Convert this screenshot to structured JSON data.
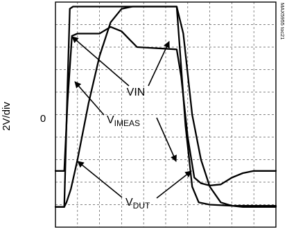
{
  "chart_data": {
    "type": "line",
    "title": "",
    "ylabel": "2V/div",
    "y_zero_label": "0",
    "grid": true,
    "grid_divisions": {
      "x": 10,
      "y": 10
    },
    "ylim": [
      -5,
      5
    ],
    "side_label": "MAX5955 toc21",
    "series": [
      {
        "name": "VIN",
        "x": [
          0,
          0.4,
          0.55,
          0.65,
          0.8,
          1.0,
          5.5,
          5.9,
          6.2,
          6.5,
          7.0,
          8.0,
          10.0
        ],
        "y": [
          -4.1,
          -4.1,
          1.4,
          4.7,
          4.8,
          4.8,
          4.8,
          -0.5,
          -3.2,
          -3.9,
          -4.0,
          -4.05,
          -4.05
        ]
      },
      {
        "name": "VIMEAS",
        "x": [
          0,
          0.4,
          0.55,
          0.75,
          1.0,
          2.0,
          2.5,
          3.0,
          3.4,
          3.7,
          5.5,
          5.7,
          6.0,
          6.3,
          6.6,
          7.0,
          7.5,
          8.0,
          8.5,
          9.0,
          9.5,
          10.0
        ],
        "y": [
          -2.5,
          -2.5,
          0.6,
          3.5,
          3.6,
          3.6,
          3.9,
          3.7,
          3.3,
          3.0,
          2.9,
          1.7,
          -1.0,
          -2.8,
          -3.05,
          -3.15,
          -3.1,
          -2.8,
          -2.6,
          -2.5,
          -2.5,
          -2.5
        ]
      },
      {
        "name": "VDUT",
        "x": [
          0,
          0.4,
          0.5,
          0.7,
          1.0,
          1.5,
          2.0,
          2.5,
          3.0,
          3.5,
          4.0,
          5.5,
          5.8,
          6.2,
          6.6,
          7.0,
          7.5,
          8.0,
          8.5,
          10.0
        ],
        "y": [
          -4.1,
          -4.1,
          -3.9,
          -3.3,
          -2.0,
          0.5,
          2.6,
          4.1,
          4.7,
          4.8,
          4.8,
          4.8,
          3.6,
          0.0,
          -2.0,
          -3.2,
          -3.9,
          -4.05,
          -4.1,
          -4.1
        ]
      }
    ],
    "annotations": [
      {
        "text": "VIN",
        "main": "VIN",
        "sub": ""
      },
      {
        "text": "VIMEAS",
        "main": "V",
        "sub": "IMEAS"
      },
      {
        "text": "VDUT",
        "main": "V",
        "sub": "DUT"
      }
    ]
  }
}
